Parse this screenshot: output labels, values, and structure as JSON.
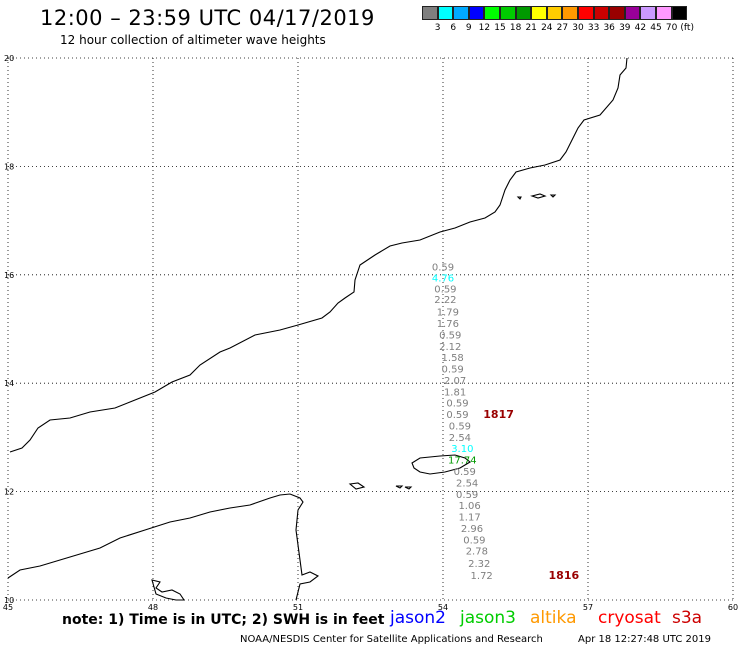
{
  "title": "12:00 – 23:59 UTC 04/17/2019",
  "subtitle": "12 hour collection of altimeter wave heights",
  "colorbar": {
    "colors": [
      "#7f7f7f",
      "#00ffff",
      "#00aaff",
      "#0000ff",
      "#00ff00",
      "#00cc00",
      "#009900",
      "#ffff00",
      "#ffcc00",
      "#ff9900",
      "#ff0000",
      "#cc0000",
      "#990000",
      "#990099",
      "#cc99ff",
      "#ff99ff",
      "#000000"
    ],
    "labels": [
      "3",
      "6",
      "9",
      "12",
      "15",
      "18",
      "21",
      "24",
      "27",
      "30",
      "33",
      "36",
      "39",
      "42",
      "45",
      "70",
      "(ft)"
    ]
  },
  "map": {
    "lon_range": [
      45,
      60
    ],
    "lat_range": [
      10,
      20
    ],
    "x_ticks": [
      "45",
      "48",
      "51",
      "54",
      "57",
      "60"
    ],
    "y_ticks": [
      "20",
      "18",
      "16",
      "14",
      "12",
      "10"
    ],
    "grid": "dotted"
  },
  "wave_labels": [
    {
      "text": "0.59",
      "lon": 54.0,
      "lat": 16.15,
      "color": "#7f7f7f"
    },
    {
      "text": "4.76",
      "lon": 54.0,
      "lat": 15.95,
      "color": "#00ffff"
    },
    {
      "text": "0.59",
      "lon": 54.05,
      "lat": 15.75,
      "color": "#7f7f7f"
    },
    {
      "text": "2.22",
      "lon": 54.05,
      "lat": 15.55,
      "color": "#7f7f7f"
    },
    {
      "text": "1.79",
      "lon": 54.1,
      "lat": 15.32,
      "color": "#7f7f7f"
    },
    {
      "text": "1.76",
      "lon": 54.1,
      "lat": 15.11,
      "color": "#7f7f7f"
    },
    {
      "text": "0.59",
      "lon": 54.15,
      "lat": 14.9,
      "color": "#7f7f7f"
    },
    {
      "text": "2.12",
      "lon": 54.15,
      "lat": 14.69,
      "color": "#7f7f7f"
    },
    {
      "text": "1.58",
      "lon": 54.2,
      "lat": 14.48,
      "color": "#7f7f7f"
    },
    {
      "text": "0.59",
      "lon": 54.2,
      "lat": 14.27,
      "color": "#7f7f7f"
    },
    {
      "text": "2.07",
      "lon": 54.25,
      "lat": 14.06,
      "color": "#7f7f7f"
    },
    {
      "text": "1.81",
      "lon": 54.25,
      "lat": 13.85,
      "color": "#7f7f7f"
    },
    {
      "text": "0.59",
      "lon": 54.3,
      "lat": 13.64,
      "color": "#7f7f7f"
    },
    {
      "text": "0.59",
      "lon": 54.3,
      "lat": 13.43,
      "color": "#7f7f7f"
    },
    {
      "text": "0.59",
      "lon": 54.35,
      "lat": 13.22,
      "color": "#7f7f7f"
    },
    {
      "text": "2.54",
      "lon": 54.35,
      "lat": 13.01,
      "color": "#7f7f7f"
    },
    {
      "text": "3.10",
      "lon": 54.4,
      "lat": 12.8,
      "color": "#00ffff"
    },
    {
      "text": "17.74",
      "lon": 54.4,
      "lat": 12.59,
      "color": "#009900"
    },
    {
      "text": "0.59",
      "lon": 54.45,
      "lat": 12.38,
      "color": "#7f7f7f"
    },
    {
      "text": "2.54",
      "lon": 54.5,
      "lat": 12.17,
      "color": "#7f7f7f"
    },
    {
      "text": "0.59",
      "lon": 54.5,
      "lat": 11.96,
      "color": "#7f7f7f"
    },
    {
      "text": "1.06",
      "lon": 54.55,
      "lat": 11.75,
      "color": "#7f7f7f"
    },
    {
      "text": "1.17",
      "lon": 54.55,
      "lat": 11.54,
      "color": "#7f7f7f"
    },
    {
      "text": "2.96",
      "lon": 54.6,
      "lat": 11.33,
      "color": "#7f7f7f"
    },
    {
      "text": "0.59",
      "lon": 54.65,
      "lat": 11.12,
      "color": "#7f7f7f"
    },
    {
      "text": "2.78",
      "lon": 54.7,
      "lat": 10.91,
      "color": "#7f7f7f"
    },
    {
      "text": "2.32",
      "lon": 54.75,
      "lat": 10.68,
      "color": "#7f7f7f"
    },
    {
      "text": "1.72",
      "lon": 54.8,
      "lat": 10.46,
      "color": "#7f7f7f"
    }
  ],
  "time_labels": [
    {
      "text": "1817",
      "lon": 55.15,
      "lat": 13.43,
      "color": "#990000"
    },
    {
      "text": "1816",
      "lon": 56.5,
      "lat": 10.46,
      "color": "#990000"
    }
  ],
  "note": "note: 1) Time is in UTC; 2) SWH is in feet",
  "legend": [
    {
      "name": "jason2",
      "color": "#0000ff"
    },
    {
      "name": "jason3",
      "color": "#00cc00"
    },
    {
      "name": "altika",
      "color": "#ff9900"
    },
    {
      "name": "cryosat",
      "color": "#ff0000"
    },
    {
      "name": "s3a",
      "color": "#cc0000"
    }
  ],
  "footer_left": "NOAA/NESDIS Center for Satellite Applications and Research",
  "footer_right": "Apr 18 12:27:48 UTC 2019"
}
